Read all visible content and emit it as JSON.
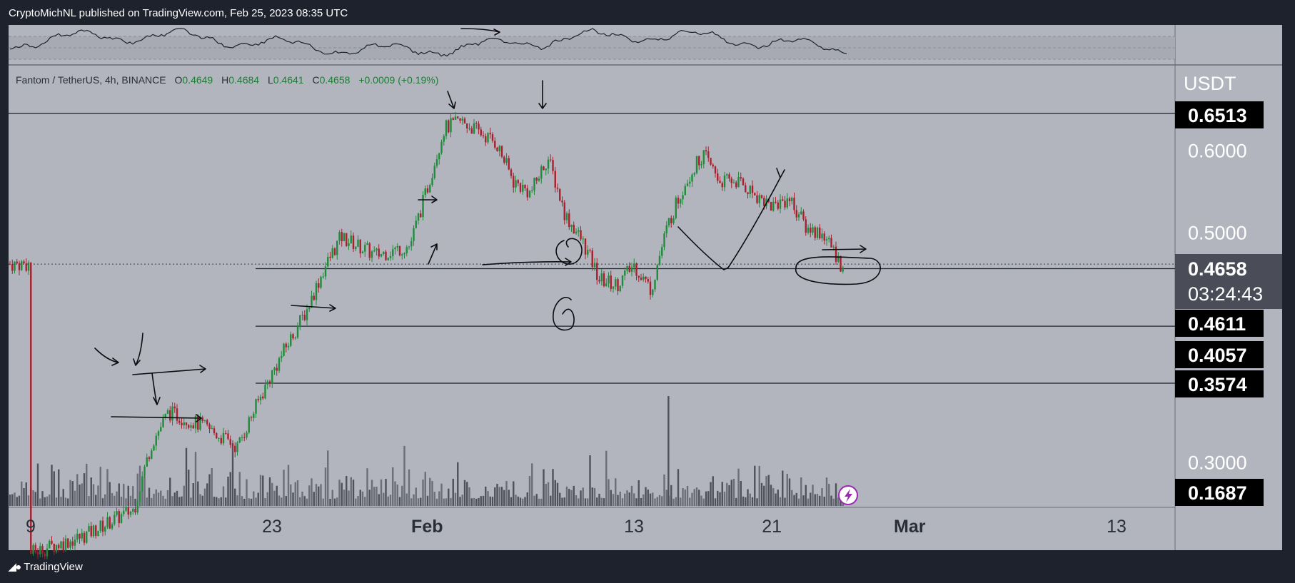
{
  "header": {
    "publisher": "CryptoMichNL published on TradingView.com, Feb 25, 2023 08:35 UTC"
  },
  "footer": {
    "logo_text": "TradingView"
  },
  "symbol_bar": {
    "name": "Fantom / TetherUS, 4h, BINANCE",
    "open_label": "O",
    "open": "0.4649",
    "high_label": "H",
    "high": "0.4684",
    "low_label": "L",
    "low": "0.4641",
    "close_label": "C",
    "close": "0.4658",
    "change": "+0.0009 (+0.19%)"
  },
  "colors": {
    "background": "#b2b5be",
    "up": "#1e8c3a",
    "down": "#a91f2e",
    "volume": "#5d606b",
    "page": "#1e222d",
    "label_bg": "#000000"
  },
  "chart_data": {
    "type": "candlestick",
    "currency": "USDT",
    "y_ticks": [
      "0.6000",
      "0.5000",
      "0.3000"
    ],
    "x_ticks": [
      "9",
      "23",
      "Feb",
      "13",
      "21",
      "Mar",
      "13"
    ],
    "price_labels": [
      "0.6513",
      "0.4611",
      "0.4057",
      "0.3574",
      "0.1687"
    ],
    "current_price": "0.4658",
    "countdown": "03:24:43",
    "horizontal_levels": [
      0.6513,
      0.4611,
      0.4057,
      0.3574
    ],
    "ylim": [
      0.1687,
      0.6513
    ],
    "price_path": [
      {
        "date": "2023-01-09",
        "close": 0.245
      },
      {
        "date": "2023-01-12",
        "close": 0.254
      },
      {
        "date": "2023-01-15",
        "close": 0.27
      },
      {
        "date": "2023-01-16",
        "close": 0.312
      },
      {
        "date": "2023-01-17",
        "close": 0.335
      },
      {
        "date": "2023-01-19",
        "close": 0.325
      },
      {
        "date": "2023-01-21",
        "close": 0.31
      },
      {
        "date": "2023-01-23",
        "close": 0.365
      },
      {
        "date": "2023-01-25",
        "close": 0.42
      },
      {
        "date": "2023-01-26",
        "close": 0.46
      },
      {
        "date": "2023-01-27",
        "close": 0.495
      },
      {
        "date": "2023-01-29",
        "close": 0.475
      },
      {
        "date": "2023-01-31",
        "close": 0.485
      },
      {
        "date": "2023-02-01",
        "close": 0.55
      },
      {
        "date": "2023-02-02",
        "close": 0.63
      },
      {
        "date": "2023-02-03",
        "close": 0.64
      },
      {
        "date": "2023-02-05",
        "close": 0.61
      },
      {
        "date": "2023-02-06",
        "close": 0.56
      },
      {
        "date": "2023-02-07",
        "close": 0.545
      },
      {
        "date": "2023-02-08",
        "close": 0.59
      },
      {
        "date": "2023-02-09",
        "close": 0.52
      },
      {
        "date": "2023-02-10",
        "close": 0.49
      },
      {
        "date": "2023-02-11",
        "close": 0.45
      },
      {
        "date": "2023-02-12",
        "close": 0.445
      },
      {
        "date": "2023-02-13",
        "close": 0.465
      },
      {
        "date": "2023-02-14",
        "close": 0.44
      },
      {
        "date": "2023-02-15",
        "close": 0.51
      },
      {
        "date": "2023-02-16",
        "close": 0.56
      },
      {
        "date": "2023-02-17",
        "close": 0.595
      },
      {
        "date": "2023-02-18",
        "close": 0.56
      },
      {
        "date": "2023-02-19",
        "close": 0.56
      },
      {
        "date": "2023-02-20",
        "close": 0.545
      },
      {
        "date": "2023-02-21",
        "close": 0.53
      },
      {
        "date": "2023-02-22",
        "close": 0.54
      },
      {
        "date": "2023-02-23",
        "close": 0.505
      },
      {
        "date": "2023-02-24",
        "close": 0.498
      },
      {
        "date": "2023-02-25",
        "close": 0.4658
      }
    ]
  }
}
